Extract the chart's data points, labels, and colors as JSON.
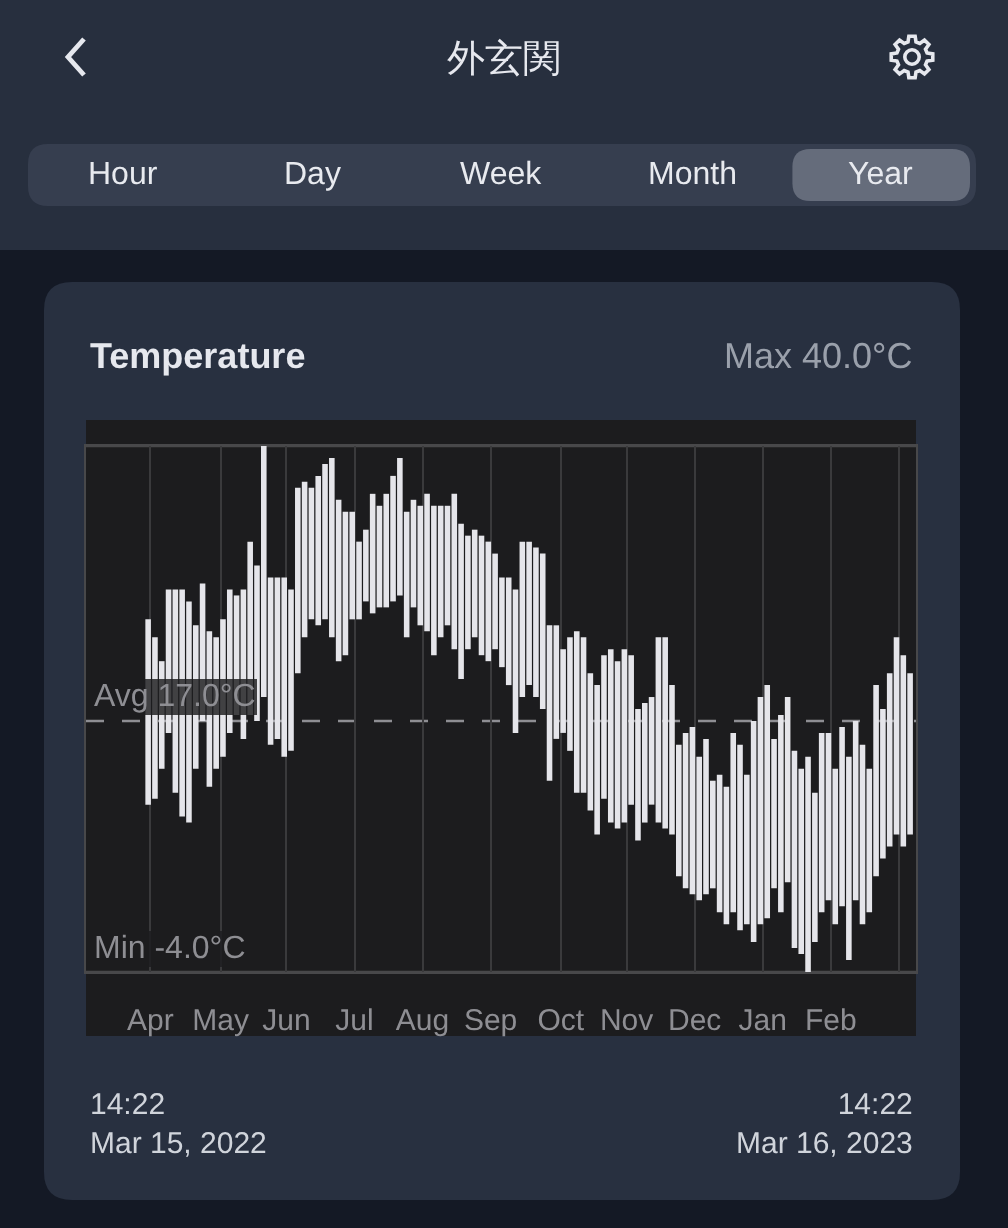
{
  "chart_data": {
    "type": "bar",
    "title": "外玄関",
    "subtitle": "Temperature",
    "annotations": [
      "Hour",
      "Day",
      "Week",
      "Month",
      "Year",
      "14:22\nMar 15, 2022",
      "14:22\nMar 16, 2023"
    ],
    "x": [
      "2022-04-12",
      "2022-04-15",
      "2022-04-18",
      "2022-04-21",
      "2022-04-24",
      "2022-04-27",
      "2022-04-30",
      "2022-05-03",
      "2022-05-06",
      "2022-05-09",
      "2022-05-12",
      "2022-05-15",
      "2022-05-18",
      "2022-05-21",
      "2022-05-24",
      "2022-05-27",
      "2022-05-30",
      "2022-06-02",
      "2022-06-05",
      "2022-06-08",
      "2022-06-11",
      "2022-06-14",
      "2022-06-17",
      "2022-06-20",
      "2022-06-23",
      "2022-06-26",
      "2022-06-29",
      "2022-07-02",
      "2022-07-05",
      "2022-07-08",
      "2022-07-11",
      "2022-07-14",
      "2022-07-17",
      "2022-07-20",
      "2022-07-23",
      "2022-07-26",
      "2022-07-29",
      "2022-08-01",
      "2022-08-04",
      "2022-08-07",
      "2022-08-10",
      "2022-08-13",
      "2022-08-16",
      "2022-08-19",
      "2022-08-22",
      "2022-08-25",
      "2022-08-28",
      "2022-08-31",
      "2022-09-03",
      "2022-09-06",
      "2022-09-09",
      "2022-09-12",
      "2022-09-15",
      "2022-09-18",
      "2022-09-21",
      "2022-09-24",
      "2022-09-27",
      "2022-09-30",
      "2022-10-03",
      "2022-10-06",
      "2022-10-09",
      "2022-10-12",
      "2022-10-15",
      "2022-10-18",
      "2022-10-21",
      "2022-10-24",
      "2022-10-27",
      "2022-10-30",
      "2022-11-02",
      "2022-11-05",
      "2022-11-08",
      "2022-11-11",
      "2022-11-14",
      "2022-11-17",
      "2022-11-20",
      "2022-11-23",
      "2022-11-26",
      "2022-11-29",
      "2022-12-02",
      "2022-12-05",
      "2022-12-08",
      "2022-12-11",
      "2022-12-14",
      "2022-12-17",
      "2022-12-20",
      "2022-12-23",
      "2022-12-26",
      "2022-12-29",
      "2023-01-01",
      "2023-01-04",
      "2023-01-07",
      "2023-01-10",
      "2023-01-13",
      "2023-01-16",
      "2023-01-19",
      "2023-01-22",
      "2023-01-25",
      "2023-01-28",
      "2023-01-31",
      "2023-02-03",
      "2023-02-06",
      "2023-02-09",
      "2023-02-12",
      "2023-02-15",
      "2023-02-18",
      "2023-02-21",
      "2023-02-24",
      "2023-02-27",
      "2023-03-02",
      "2023-03-05",
      "2023-03-08",
      "2023-03-11",
      "2023-03-14"
    ],
    "base": [
      10,
      10.5,
      13,
      16,
      11,
      9,
      8.5,
      13,
      17,
      11.5,
      13,
      14,
      16,
      17.5,
      15.5,
      17.5,
      17,
      19,
      15,
      15.5,
      14,
      14.5,
      21,
      24,
      25.5,
      25,
      25.5,
      24,
      22,
      22.5,
      25.5,
      25.5,
      27,
      26,
      26.5,
      26.5,
      27,
      27.5,
      24,
      26.5,
      25,
      24.5,
      22.5,
      24,
      25,
      23,
      20.5,
      23,
      24,
      22.5,
      22,
      23,
      21.5,
      20,
      16,
      19,
      20,
      19,
      18,
      12,
      15.5,
      16,
      14.5,
      11,
      11,
      9.5,
      7.5,
      10.5,
      8.5,
      8,
      8.5,
      10,
      7,
      8.5,
      10,
      8.5,
      8,
      7.5,
      4,
      3,
      2.5,
      2,
      2.5,
      3,
      1,
      0,
      1,
      -0.5,
      0,
      -1.5,
      0,
      0.5,
      3,
      1,
      3.5,
      -2,
      -2.5,
      -4,
      -1.5,
      1,
      2,
      0,
      1.5,
      -3,
      2,
      0,
      1,
      4,
      5.5,
      6.5,
      7.5,
      6.5,
      7.5
    ],
    "values": [
      15.5,
      13.5,
      9,
      12,
      17,
      19,
      18.5,
      12,
      11.5,
      13,
      11,
      11.5,
      12,
      10,
      12.5,
      14.5,
      13,
      21,
      14,
      13.5,
      15,
      13.5,
      15.5,
      13,
      11,
      12.5,
      13,
      15,
      13.5,
      12,
      9,
      6.5,
      6,
      10,
      8.5,
      9.5,
      10.5,
      11.5,
      10.5,
      9,
      10,
      11.5,
      12.5,
      11,
      10,
      13,
      13,
      9.5,
      9,
      10,
      10,
      8,
      7.5,
      9,
      12,
      13,
      12,
      12.5,
      13,
      13,
      9.5,
      7,
      9.5,
      13.5,
      13,
      11.5,
      12.5,
      12,
      14.5,
      14,
      14.5,
      12.5,
      11,
      10,
      9,
      15.5,
      16,
      12.5,
      11,
      13,
      14,
      12,
      13,
      9,
      11.5,
      11.5,
      15,
      15.5,
      12.5,
      18.5,
      19,
      19.5,
      12.5,
      16.5,
      15.5,
      16.5,
      15.5,
      18,
      12.5,
      15,
      14,
      13,
      15,
      17,
      15,
      15,
      12,
      16,
      12.5,
      14.5,
      16.5,
      16,
      13.5
    ],
    "color": "#e5e5ea",
    "xlim": [
      "2022-03-15T14:22",
      "2023-03-16T14:22"
    ],
    "xticks": [
      {
        "value": "2022-04-13",
        "label": "Apr"
      },
      {
        "value": "2022-05-14",
        "label": "May"
      },
      {
        "value": "2022-06-12",
        "label": "Jun"
      },
      {
        "value": "2022-07-12",
        "label": "Jul"
      },
      {
        "value": "2022-08-11",
        "label": "Aug"
      },
      {
        "value": "2022-09-10",
        "label": "Sep"
      },
      {
        "value": "2022-10-11",
        "label": "Oct"
      },
      {
        "value": "2022-11-09",
        "label": "Nov"
      },
      {
        "value": "2022-12-09",
        "label": "Dec"
      },
      {
        "value": "2023-01-08",
        "label": "Jan"
      },
      {
        "value": "2023-02-07",
        "label": "Feb"
      },
      {
        "value": "2023-03-09",
        "label": null
      }
    ],
    "ylim": [
      -4,
      40
    ],
    "ref_lines": [
      {
        "axis": "y",
        "value": 40,
        "label": "Max 40.0°C",
        "color": "#48484a",
        "line_style": "solid"
      },
      {
        "axis": "y",
        "value": 17,
        "label": "Avg 17.0°C",
        "color": "#8e8e93",
        "line_style": "dashed"
      },
      {
        "axis": "y",
        "value": -4,
        "label": "Min -4.0°C",
        "color": "#48484a",
        "line_style": "solid"
      }
    ],
    "grid": "x",
    "tick_labels": "x"
  }
}
